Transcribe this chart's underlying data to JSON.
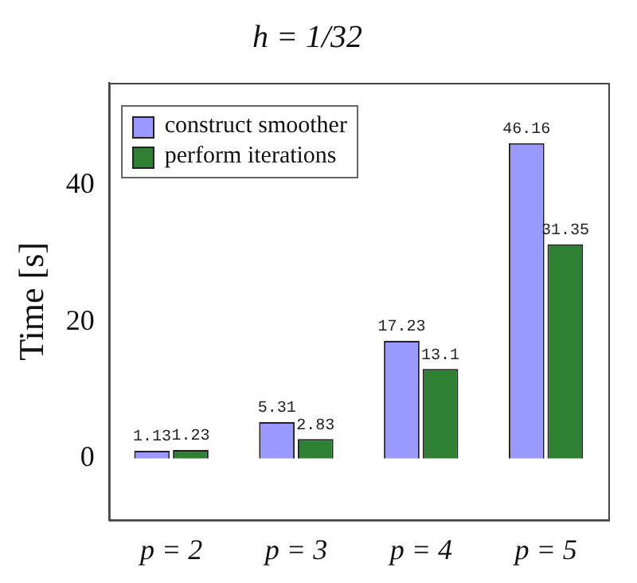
{
  "chart_data": {
    "type": "bar",
    "title": "h = 1/32",
    "ylabel": "Time [s]",
    "categories": [
      "p = 2",
      "p = 3",
      "p = 4",
      "p = 5"
    ],
    "series": [
      {
        "name": "construct smoother",
        "color": "#9999ff",
        "values": [
          1.13,
          5.31,
          17.23,
          46.16
        ]
      },
      {
        "name": "perform iterations",
        "color": "#2e8032",
        "values": [
          1.23,
          2.83,
          13.1,
          31.35
        ]
      }
    ],
    "ylim": [
      -9,
      55
    ],
    "yticks": [
      0,
      20,
      40
    ],
    "data_labels": true,
    "legend": "top left",
    "grid": false
  }
}
